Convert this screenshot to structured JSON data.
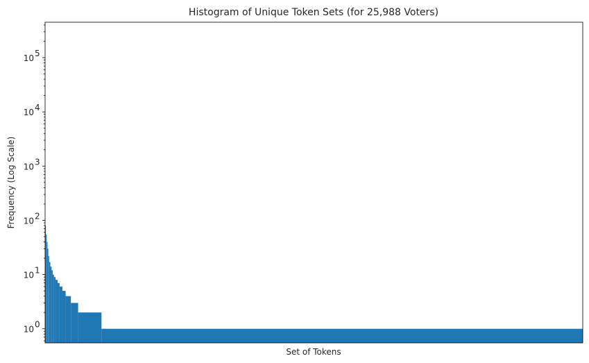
{
  "chart_data": {
    "type": "bar",
    "title": "Histogram of Unique Token Sets (for 25,988 Voters)",
    "xlabel": "Set of Tokens",
    "ylabel": "Frequency (Log Scale)",
    "yscale": "log",
    "ylim": [
      0.55,
      450000
    ],
    "y_ticks": [
      {
        "value": 1,
        "label": "10",
        "exp": "0"
      },
      {
        "value": 10,
        "label": "10",
        "exp": "1"
      },
      {
        "value": 100,
        "label": "10",
        "exp": "2"
      },
      {
        "value": 1000,
        "label": "10",
        "exp": "3"
      },
      {
        "value": 10000,
        "label": "10",
        "exp": "4"
      },
      {
        "value": 100000,
        "label": "10",
        "exp": "5"
      }
    ],
    "x_ticks_shown": false,
    "grid": false,
    "bar_color": "#1f77b4",
    "rank_segments": [
      {
        "from": 0,
        "to": 2,
        "value": 80
      },
      {
        "from": 2,
        "to": 4,
        "value": 55
      },
      {
        "from": 4,
        "to": 6,
        "value": 40
      },
      {
        "from": 6,
        "to": 8,
        "value": 30
      },
      {
        "from": 8,
        "to": 10,
        "value": 22
      },
      {
        "from": 10,
        "to": 13,
        "value": 17
      },
      {
        "from": 13,
        "to": 16,
        "value": 14
      },
      {
        "from": 16,
        "to": 19,
        "value": 12
      },
      {
        "from": 19,
        "to": 22,
        "value": 10
      },
      {
        "from": 22,
        "to": 26,
        "value": 9
      },
      {
        "from": 26,
        "to": 31,
        "value": 8
      },
      {
        "from": 31,
        "to": 36,
        "value": 7
      },
      {
        "from": 36,
        "to": 43,
        "value": 6
      },
      {
        "from": 43,
        "to": 51,
        "value": 5
      },
      {
        "from": 51,
        "to": 64,
        "value": 4
      },
      {
        "from": 64,
        "to": 82,
        "value": 3
      },
      {
        "from": 82,
        "to": 140,
        "value": 2
      },
      {
        "from": 140,
        "to": 1335,
        "value": 1
      }
    ],
    "x_total": 1335
  }
}
